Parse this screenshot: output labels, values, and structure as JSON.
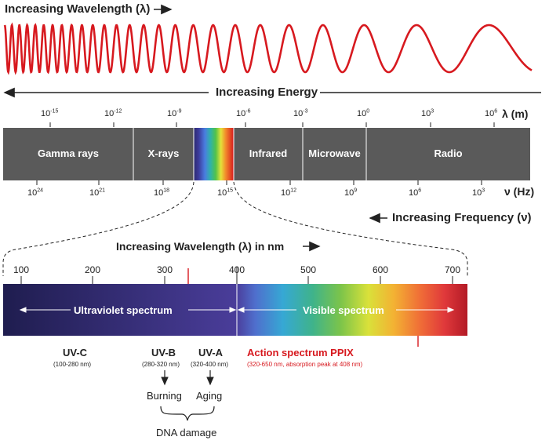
{
  "header": {
    "wavelength_label": "Increasing Wavelength (λ)",
    "energy_label": "Increasing Energy",
    "frequency_label": "Increasing Frequency (ν)"
  },
  "wavelength_ticks": [
    {
      "base": "10",
      "exp": "-15"
    },
    {
      "base": "10",
      "exp": "-12"
    },
    {
      "base": "10",
      "exp": "-9"
    },
    {
      "base": "10",
      "exp": "-6"
    },
    {
      "base": "10",
      "exp": "-3"
    },
    {
      "base": "10",
      "exp": "0"
    },
    {
      "base": "10",
      "exp": "3"
    },
    {
      "base": "10",
      "exp": "6"
    }
  ],
  "wavelength_unit": "λ (m)",
  "frequency_ticks": [
    {
      "base": "10",
      "exp": "24"
    },
    {
      "base": "10",
      "exp": "21"
    },
    {
      "base": "10",
      "exp": "18"
    },
    {
      "base": "10",
      "exp": "15"
    },
    {
      "base": "10",
      "exp": "12"
    },
    {
      "base": "10",
      "exp": "9"
    },
    {
      "base": "10",
      "exp": "6"
    },
    {
      "base": "10",
      "exp": "3"
    }
  ],
  "frequency_unit": "ν (Hz)",
  "bands": [
    "Gamma rays",
    "X-rays",
    "Infrared",
    "Microwave",
    "Radio"
  ],
  "nm_axis": {
    "title": "Increasing Wavelength (λ) in nm",
    "ticks": [
      "100",
      "200",
      "300",
      "400",
      "500",
      "600",
      "700"
    ]
  },
  "spectrum_labels": {
    "uv": "Ultraviolet spectrum",
    "visible": "Visible spectrum"
  },
  "uv_bands": [
    {
      "name": "UV-C",
      "range": "(100-280 nm)"
    },
    {
      "name": "UV-B",
      "range": "(280-320 nm)"
    },
    {
      "name": "UV-A",
      "range": "(320-400 nm)"
    }
  ],
  "action_spectrum": {
    "title": "Action spectrum PPIX",
    "detail": "(320-650 nm, absorption peak at 408 nm)",
    "color": "#d7191f"
  },
  "effects": {
    "burning": "Burning",
    "aging": "Aging",
    "dna": "DNA damage"
  },
  "colors": {
    "wave": "#d7191f",
    "band_fill": "#5a5a5a",
    "uv_dark": "#1f1d4f",
    "uv_light": "#4a3d9a"
  }
}
